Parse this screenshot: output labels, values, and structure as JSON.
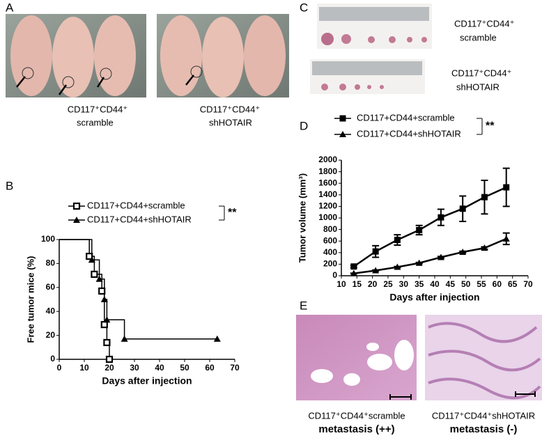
{
  "panel_labels": {
    "a": "A",
    "b": "B",
    "c": "C",
    "d": "D",
    "e": "E"
  },
  "panel_a": {
    "left_caption": [
      "CD117⁺CD44⁺",
      "scramble"
    ],
    "right_caption": [
      "CD117⁺CD44⁺",
      "shHOTAIR"
    ]
  },
  "panel_c": {
    "top_caption": [
      "CD117⁺CD44⁺",
      "scramble"
    ],
    "bottom_caption": [
      "CD117⁺CD44⁺",
      "shHOTAIR"
    ]
  },
  "panel_e": {
    "left_caption": [
      "CD117⁺CD44⁺scramble",
      "metastasis (++)"
    ],
    "right_caption": [
      "CD117⁺CD44⁺shHOTAIR",
      "metastasis (-)"
    ]
  },
  "chart_data": [
    {
      "type": "step",
      "ylabel": "Free tumor mice (%)",
      "xlabel": "Days after injection",
      "xlim": [
        0,
        70
      ],
      "ylim": [
        0,
        100
      ],
      "xticks": [
        0,
        10,
        20,
        30,
        40,
        50,
        60,
        70
      ],
      "yticks": [
        0,
        20,
        40,
        60,
        80,
        100
      ],
      "significance": "**",
      "series": [
        {
          "name": "CD117+CD44+scramble",
          "color": "#000000",
          "marker": "open-square",
          "x": [
            0,
            12,
            14,
            17,
            18,
            19,
            20
          ],
          "values": [
            100,
            86,
            71,
            57,
            29,
            14,
            0
          ]
        },
        {
          "name": "CD117+CD44+shHOTAIR",
          "color": "#000000",
          "marker": "triangle",
          "x": [
            0,
            13,
            16,
            18,
            19,
            26,
            63
          ],
          "values": [
            100,
            83,
            67,
            50,
            33,
            17,
            17
          ]
        }
      ]
    },
    {
      "type": "line",
      "ylabel": "Tumor volume (mm³)",
      "xlabel": "Days after injection",
      "xlim": [
        10,
        70
      ],
      "ylim": [
        0,
        2000
      ],
      "xticks": [
        10,
        15,
        20,
        25,
        30,
        35,
        40,
        45,
        50,
        55,
        60,
        65,
        70
      ],
      "yticks": [
        0,
        200,
        400,
        600,
        800,
        1000,
        1200,
        1400,
        1600,
        1800,
        2000
      ],
      "significance": "**",
      "x": [
        14,
        21,
        28,
        35,
        42,
        49,
        56,
        63
      ],
      "series": [
        {
          "name": "CD117+CD44+scramble",
          "color": "#000000",
          "marker": "square",
          "values": [
            160,
            420,
            620,
            790,
            1010,
            1160,
            1360,
            1530
          ],
          "errors": [
            20,
            100,
            90,
            80,
            140,
            220,
            290,
            330
          ]
        },
        {
          "name": "CD117+CD44+shHOTAIR",
          "color": "#000000",
          "marker": "triangle",
          "values": [
            40,
            90,
            150,
            220,
            320,
            410,
            480,
            640
          ],
          "errors": [
            5,
            10,
            10,
            10,
            15,
            15,
            20,
            100
          ]
        }
      ]
    }
  ]
}
